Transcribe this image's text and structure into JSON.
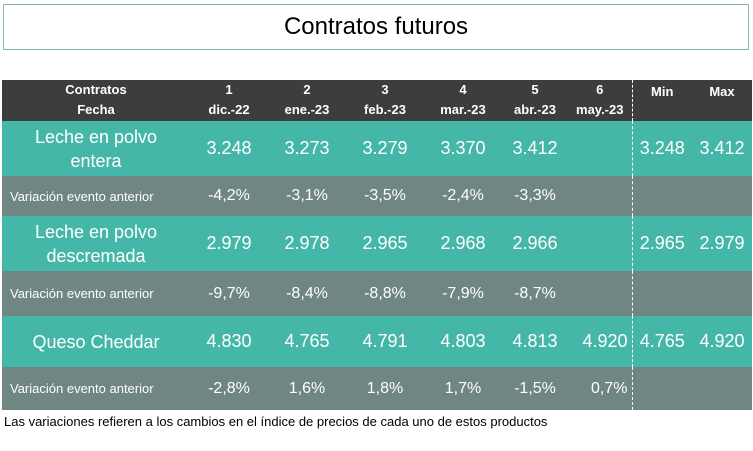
{
  "title": "Contratos futuros",
  "header": {
    "row1_label": "Contratos",
    "row2_label": "Fecha",
    "contracts": [
      {
        "num": "1",
        "date": "dic.-22"
      },
      {
        "num": "2",
        "date": "ene.-23"
      },
      {
        "num": "3",
        "date": "feb.-23"
      },
      {
        "num": "4",
        "date": "mar.-23"
      },
      {
        "num": "5",
        "date": "abr.-23"
      },
      {
        "num": "6",
        "date": "may.-23"
      }
    ],
    "min_label": "Min",
    "max_label": "Max"
  },
  "products": [
    {
      "name_line1": "Leche en polvo",
      "name_line2": "entera",
      "prices": [
        "3.248",
        "3.273",
        "3.279",
        "3.370",
        "3.412",
        ""
      ],
      "min": "3.248",
      "max": "3.412",
      "variation_label": "Variación evento anterior",
      "variations": [
        "-4,2%",
        "-3,1%",
        "-3,5%",
        "-2,4%",
        "-3,3%",
        ""
      ]
    },
    {
      "name_line1": "Leche en polvo",
      "name_line2": "descremada",
      "prices": [
        "2.979",
        "2.978",
        "2.965",
        "2.968",
        "2.966",
        ""
      ],
      "min": "2.965",
      "max": "2.979",
      "variation_label": "Variación evento anterior",
      "variations": [
        "-9,7%",
        "-8,4%",
        "-8,8%",
        "-7,9%",
        "-8,7%",
        ""
      ]
    },
    {
      "name_line1": "Queso Cheddar",
      "name_line2": "",
      "prices": [
        "4.830",
        "4.765",
        "4.791",
        "4.803",
        "4.813",
        "4.920"
      ],
      "min": "4.765",
      "max": "4.920",
      "variation_label": "Variación evento anterior",
      "variations": [
        "-2,8%",
        "1,6%",
        "1,8%",
        "1,7%",
        "-1,5%",
        "0,7%"
      ]
    }
  ],
  "footnote": "Las variaciones refieren a los cambios en el índice de precios de cada uno de estos productos",
  "colors": {
    "header_bg": "#3d3d3d",
    "price_row_bg": "#45b7a9",
    "variation_row_bg": "#6f8682",
    "title_border": "#7fb8b4"
  }
}
